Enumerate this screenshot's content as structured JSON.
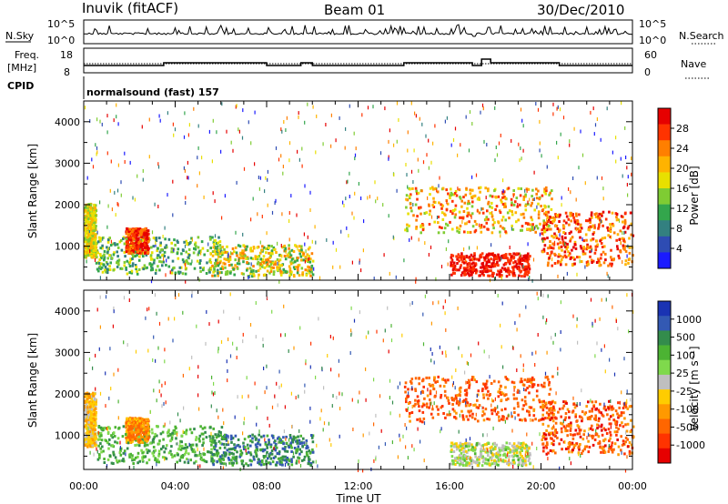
{
  "header": {
    "station": "Inuvik (fitACF)",
    "beam": "Beam 01",
    "date": "30/Dec/2010"
  },
  "strip": {
    "nsky_label": "N.Sky",
    "nsky_ticks": [
      "10^5",
      "10^0"
    ],
    "nsearch_label": "N.Search",
    "nsearch_ticks": [
      "10^5",
      "10^0"
    ],
    "freq_label_1": "Freq.",
    "freq_label_2": "[MHz]",
    "freq_ticks": [
      "18",
      "8"
    ],
    "nave_label": "Nave",
    "nave_ticks": [
      "60",
      "0"
    ],
    "cpid_label": "CPID",
    "cpid_text": "normalsound (fast) 157"
  },
  "chart_data": [
    {
      "type": "heatmap",
      "name": "power-panel",
      "ylabel": "Slant Range [km]",
      "xlabel": "",
      "x_ticks": [
        "00:00",
        "04:00",
        "08:00",
        "12:00",
        "16:00",
        "20:00",
        "00:00"
      ],
      "y_ticks": [
        "1000",
        "2000",
        "3000",
        "4000"
      ],
      "ylim": [
        180,
        4500
      ],
      "xlim_hours": [
        0,
        24
      ],
      "colorbar": {
        "label": "Power [dB]",
        "ticks": [
          "28",
          "24",
          "20",
          "16",
          "12",
          "8",
          "4"
        ],
        "colors": [
          "#e60000",
          "#ff3300",
          "#ff7f00",
          "#ffb300",
          "#e8e000",
          "#7fcc33",
          "#33a64c",
          "#338080",
          "#2e4cb3",
          "#1a1aff"
        ]
      }
    },
    {
      "type": "heatmap",
      "name": "velocity-panel",
      "ylabel": "Slant Range [km]",
      "xlabel": "Time UT",
      "x_ticks": [
        "00:00",
        "04:00",
        "08:00",
        "12:00",
        "16:00",
        "20:00",
        "00:00"
      ],
      "y_ticks": [
        "1000",
        "2000",
        "3000",
        "4000"
      ],
      "ylim": [
        180,
        4500
      ],
      "xlim_hours": [
        0,
        24
      ],
      "colorbar": {
        "label": "Velocity [m s⁻¹]",
        "ticks": [
          "1000",
          "500",
          "100",
          "25",
          "-25",
          "-100",
          "-500",
          "-1000"
        ],
        "colors": [
          "#1a33b3",
          "#3359b3",
          "#338c4c",
          "#4cb333",
          "#7fd94c",
          "#bfbfbf",
          "#ffcc00",
          "#ff9900",
          "#ff6600",
          "#ff3300",
          "#e60000"
        ]
      }
    }
  ]
}
